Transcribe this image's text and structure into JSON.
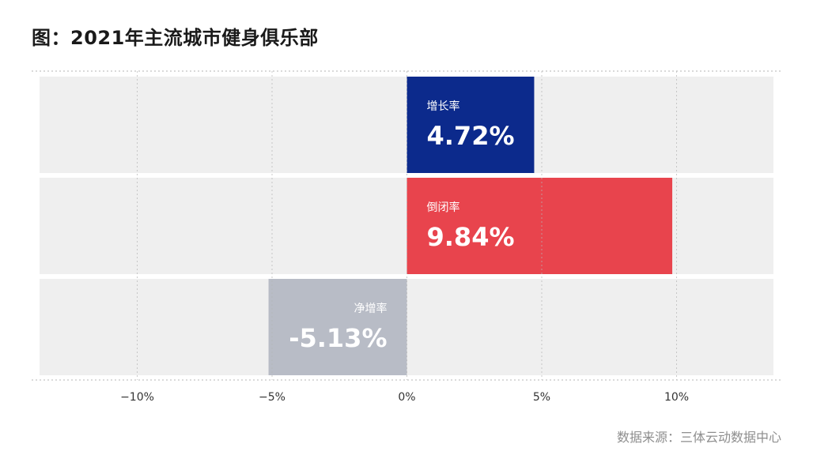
{
  "title": "图：2021年主流城市健身俱乐部",
  "source": "数据来源：三体云动数据中心",
  "colors": {
    "row_background": "#efefef",
    "grid_line": "#b5b5b5",
    "growth": "#0c2a8c",
    "closure": "#e8444d",
    "net": "#b8bcc6"
  },
  "chart_data": {
    "type": "bar",
    "orientation": "horizontal",
    "categories": [
      "增长率",
      "倒闭率",
      "净增率"
    ],
    "values": [
      4.72,
      9.84,
      -5.13
    ],
    "value_labels": [
      "4.72%",
      "9.84%",
      "-5.13%"
    ],
    "xlim": [
      -13.6,
      13.6
    ],
    "xticks": [
      -10,
      -5,
      0,
      5,
      10
    ],
    "xtick_labels": [
      "−10%",
      "−5%",
      "0%",
      "5%",
      "10%"
    ],
    "grid": true,
    "title": "图：2021年主流城市健身俱乐部",
    "xlabel": "",
    "ylabel": ""
  }
}
